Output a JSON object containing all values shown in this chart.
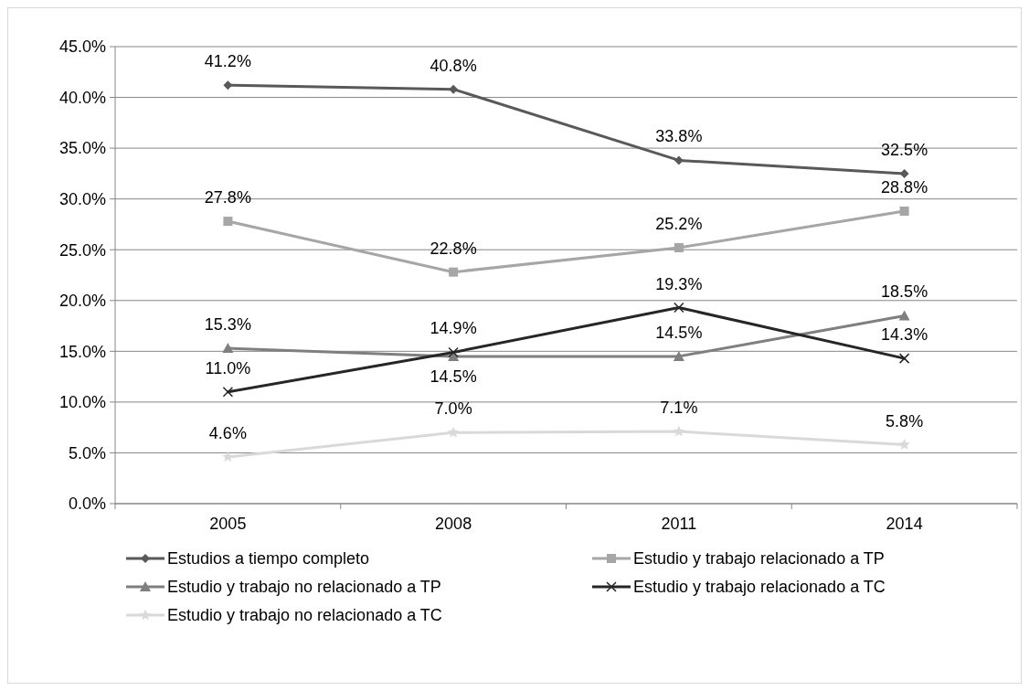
{
  "chart_data": {
    "type": "line",
    "categories": [
      "2005",
      "2008",
      "2011",
      "2014"
    ],
    "series": [
      {
        "name": "Estudios a tiempo completo",
        "color": "#595959",
        "marker": "diamond",
        "values": [
          41.2,
          40.8,
          33.8,
          32.5
        ]
      },
      {
        "name": "Estudio y trabajo relacionado a TP",
        "color": "#a6a6a6",
        "marker": "square",
        "values": [
          27.8,
          22.8,
          25.2,
          28.8
        ]
      },
      {
        "name": "Estudio y trabajo no relacionado a TP",
        "color": "#7f7f7f",
        "marker": "triangle",
        "values": [
          15.3,
          14.5,
          14.5,
          18.5
        ]
      },
      {
        "name": "Estudio y trabajo relacionado a TC",
        "color": "#262626",
        "marker": "cross",
        "values": [
          11.0,
          14.9,
          19.3,
          14.3
        ]
      },
      {
        "name": "Estudio y trabajo no relacionado a TC",
        "color": "#d9d9d9",
        "marker": "star",
        "values": [
          4.6,
          7.0,
          7.1,
          5.8
        ]
      }
    ],
    "ylim": [
      0,
      45
    ],
    "yticks": [
      {
        "value": 0,
        "label": "0.0%"
      },
      {
        "value": 5,
        "label": "5.0%"
      },
      {
        "value": 10,
        "label": "10.0%"
      },
      {
        "value": 15,
        "label": "15.0%"
      },
      {
        "value": 20,
        "label": "20.0%"
      },
      {
        "value": 25,
        "label": "25.0%"
      },
      {
        "value": 30,
        "label": "30.0%"
      },
      {
        "value": 35,
        "label": "35.0%"
      },
      {
        "value": 40,
        "label": "40.0%"
      },
      {
        "value": 45,
        "label": "45.0%"
      }
    ],
    "value_labels": [
      [
        "41.2%",
        "40.8%",
        "33.8%",
        "32.5%"
      ],
      [
        "27.8%",
        "22.8%",
        "25.2%",
        "28.8%"
      ],
      [
        "15.3%",
        "14.5%",
        "14.5%",
        "18.5%"
      ],
      [
        "11.0%",
        "14.9%",
        "19.3%",
        "14.3%"
      ],
      [
        "4.6%",
        "7.0%",
        "7.1%",
        "5.8%"
      ]
    ],
    "grid": "y",
    "legend": "bottom",
    "line_style": "solid"
  }
}
